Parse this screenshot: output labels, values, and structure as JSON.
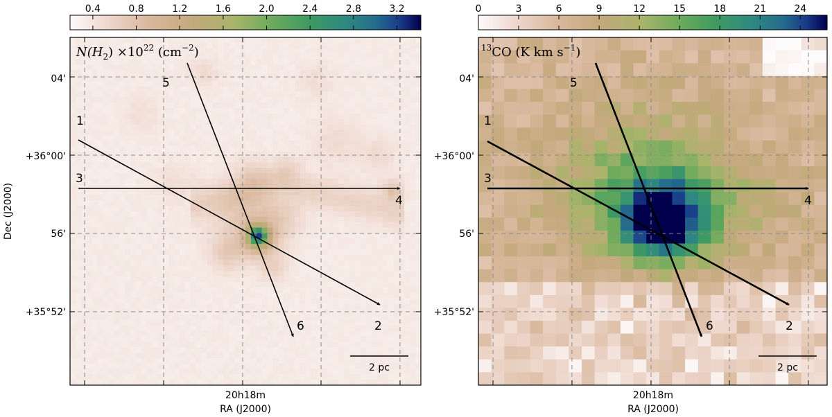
{
  "chart_data": [
    {
      "type": "heatmap",
      "panel": "left",
      "title_parts": {
        "main": "N(H",
        "sub": "2",
        "mid": ") ×10",
        "exp": "22",
        "unit": " (cm",
        "unit_exp": "−2",
        "close": ")"
      },
      "colorbar": {
        "ticks": [
          "0.4",
          "0.8",
          "1.2",
          "1.6",
          "2.0",
          "2.4",
          "2.8",
          "3.2"
        ],
        "tick_values": [
          0.4,
          0.8,
          1.2,
          1.6,
          2.0,
          2.4,
          2.8,
          3.2
        ],
        "range": [
          0.19,
          3.42
        ],
        "colormap": "gist_earth_r"
      },
      "xlabel": "RA (J2000)",
      "ylabel": "Dec (J2000)",
      "xticks": [
        "20h18m"
      ],
      "yticks": [
        "04'",
        "+36°00'",
        "56'",
        "+35°52'"
      ],
      "scalebar_label": "2 pc",
      "grid": true,
      "peak_value": 3.42,
      "cuts": [
        {
          "start_label": "1",
          "end_label": "2"
        },
        {
          "start_label": "3",
          "end_label": "4"
        },
        {
          "start_label": "5",
          "end_label": "6"
        }
      ]
    },
    {
      "type": "heatmap",
      "panel": "right",
      "title_parts": {
        "mol_sup": "13",
        "mol": "CO",
        "unit": " (K km s",
        "unit_exp": "−1",
        "close": ")"
      },
      "colorbar": {
        "ticks": [
          "0",
          "3",
          "6",
          "9",
          "12",
          "15",
          "18",
          "21",
          "24"
        ],
        "tick_values": [
          0,
          3,
          6,
          9,
          12,
          15,
          18,
          21,
          24
        ],
        "range": [
          0,
          26
        ],
        "colormap": "gist_earth_r"
      },
      "xlabel": "RA (J2000)",
      "ylabel": "",
      "xticks": [
        "20h18m"
      ],
      "yticks": [
        "04'",
        "+36°00'",
        "56'",
        "+35°52'"
      ],
      "scalebar_label": "2 pc",
      "grid": true,
      "peak_value": 26,
      "cuts": [
        {
          "start_label": "1",
          "end_label": "2"
        },
        {
          "start_label": "3",
          "end_label": "4"
        },
        {
          "start_label": "5",
          "end_label": "6"
        }
      ]
    }
  ]
}
